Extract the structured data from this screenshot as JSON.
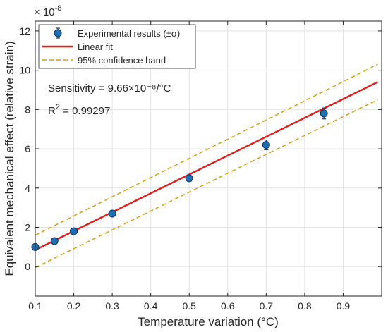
{
  "chart_data": {
    "type": "scatter",
    "xlabel": "Temperature variation (°C)",
    "ylabel": "Equivalent mechanical effect (relative strain)",
    "y_exponent_label": "× 10",
    "y_exponent_power": "-8",
    "xlim": [
      0.1,
      1.0
    ],
    "ylim": [
      -1.5,
      12.5
    ],
    "xticks": [
      0.1,
      0.2,
      0.3,
      0.4,
      0.5,
      0.6,
      0.7,
      0.8,
      0.9
    ],
    "yticks": [
      0,
      2,
      4,
      6,
      8,
      10,
      12
    ],
    "xtick_labels": [
      "0.1",
      "0.2",
      "0.3",
      "0.4",
      "0.5",
      "0.6",
      "0.7",
      "0.8",
      "0.9"
    ],
    "ytick_labels": [
      "0",
      "2",
      "4",
      "6",
      "8",
      "10",
      "12"
    ],
    "grid": true,
    "legend_position": "top-left",
    "series": [
      {
        "name": "Experimental results (±σ)",
        "kind": "points-with-errorbars",
        "color": "#1f6fb5",
        "x": [
          0.1,
          0.15,
          0.2,
          0.3,
          0.5,
          0.7,
          0.85
        ],
        "y": [
          1.0,
          1.3,
          1.8,
          2.7,
          4.5,
          6.2,
          7.8
        ],
        "err": [
          0.12,
          0.1,
          0.12,
          0.12,
          0.12,
          0.25,
          0.28
        ]
      },
      {
        "name": "Linear fit",
        "kind": "line",
        "color": "#e01e1e",
        "x": [
          0.1,
          0.99
        ],
        "y": [
          0.85,
          9.4
        ]
      },
      {
        "name": "95% confidence band",
        "kind": "dashed-band",
        "color": "#d4a21a",
        "upper": {
          "x": [
            0.1,
            0.99
          ],
          "y": [
            1.6,
            10.3
          ]
        },
        "lower": {
          "x": [
            0.1,
            0.99
          ],
          "y": [
            -0.05,
            8.5
          ]
        }
      }
    ],
    "annotations": {
      "sensitivity": "Sensitivity = 9.66×10⁻⁸/°C",
      "r2_prefix": "R",
      "r2_sup": "2",
      "r2_value": " = 0.99297"
    }
  }
}
